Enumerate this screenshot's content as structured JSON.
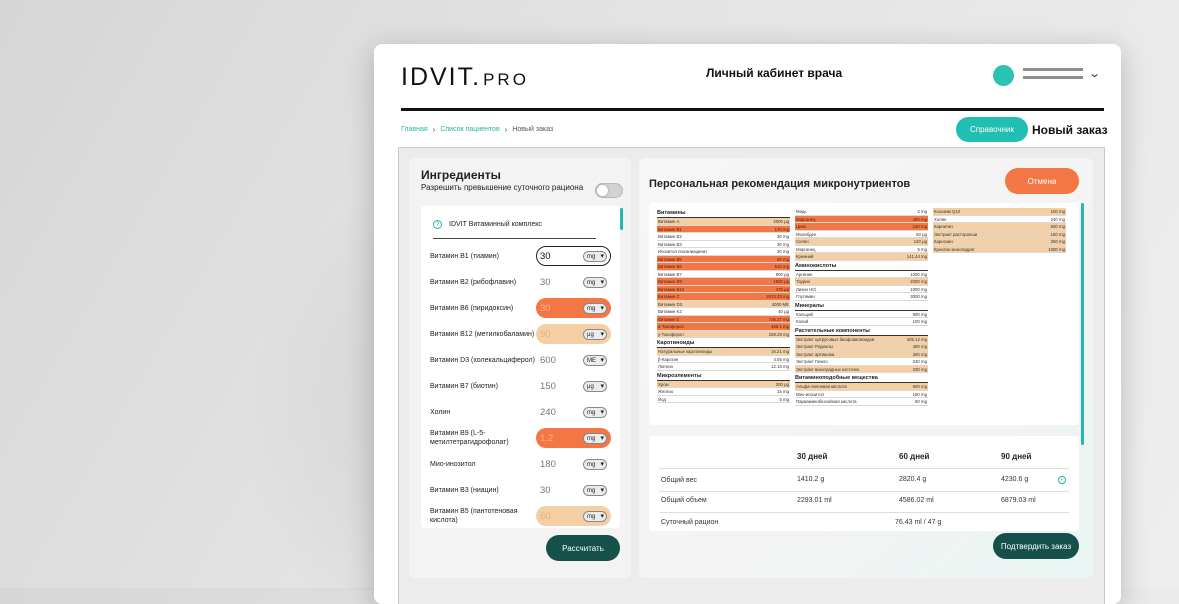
{
  "header": {
    "logo_main": "IDVIT.",
    "logo_pro": "PRO",
    "title": "Личный кабинет врача"
  },
  "breadcrumbs": [
    "Главная",
    "Список пациентов",
    "Новый заказ"
  ],
  "ref_button": "Справочник",
  "page_title": "Новый заказ",
  "ingredients": {
    "title": "Ингредиенты",
    "allow_label": "Разрешить превышение суточного рациона",
    "complex": "IDVIT Витаминный комплекс",
    "items": [
      {
        "name": "Витамин B1 (тиамин)",
        "value": "30",
        "unit": "mg"
      },
      {
        "name": "Витамин B2 (рибофлавин)",
        "value": "30",
        "unit": "mg"
      },
      {
        "name": "Витамин B6 (пиридоксин)",
        "value": "30",
        "unit": "mg"
      },
      {
        "name": "Витамин B12 (метилкобаламин)",
        "value": "90",
        "unit": "μg"
      },
      {
        "name": "Витамин D3 (холекальциферол)",
        "value": "600",
        "unit": "ME"
      },
      {
        "name": "Витамин B7 (биотин)",
        "value": "150",
        "unit": "μg"
      },
      {
        "name": "Холин",
        "value": "240",
        "unit": "mg"
      },
      {
        "name": "Витамин B9 (L-5-метилтетрагидрофолат)",
        "value": "1.2",
        "unit": "mg"
      },
      {
        "name": "Мио-инозитол",
        "value": "180",
        "unit": "mg"
      },
      {
        "name": "Витамин B3 (ниацин)",
        "value": "30",
        "unit": "mg"
      },
      {
        "name": "Витамин B5 (пантотеновая кислота)",
        "value": "60",
        "unit": "mg"
      }
    ],
    "calc_button": "Рассчитать"
  },
  "recommendation": {
    "title": "Персональная рекомендация микронутриентов",
    "cancel_button": "Отмена",
    "col1": [
      {
        "h": "Витамины"
      },
      {
        "n": "Витамин А",
        "v": "2000 μg",
        "c": "p"
      },
      {
        "n": "Витамин B1",
        "v": "170 mg",
        "c": "o"
      },
      {
        "n": "Витамин B2",
        "v": "30 mg"
      },
      {
        "n": "Витамин B3",
        "v": "30 mg"
      },
      {
        "n": "Инозитол гексаниацинат",
        "v": "20 mg"
      },
      {
        "n": "Витамин B5",
        "v": "60 mg",
        "c": "o"
      },
      {
        "n": "Витамин B6",
        "v": "510 mg",
        "c": "o"
      },
      {
        "n": "Витамин B7",
        "v": "900 μg"
      },
      {
        "n": "Витамин B9",
        "v": "1500 μg",
        "c": "o"
      },
      {
        "n": "Витамин B12",
        "v": "475 μg",
        "c": "o"
      },
      {
        "n": "Витамин C",
        "v": "2013.33 mg",
        "c": "o"
      },
      {
        "n": "Витамин D3",
        "v": "4000 ME",
        "c": "p"
      },
      {
        "n": "Витамин K2",
        "v": "40 μg"
      },
      {
        "n": "Витамин E",
        "v": "736.37 mg",
        "c": "o"
      },
      {
        "n": "a-Токоферол",
        "v": "468.1 mg",
        "c": "o"
      },
      {
        "n": "у-Токоферол",
        "v": "268.28 mg",
        "c": "p"
      },
      {
        "h": "Каротиноиды"
      },
      {
        "n": "Натуральные каротиноиды",
        "v": "16.21 mg",
        "c": "p"
      },
      {
        "n": "β-Каротин",
        "v": "4.05 mg"
      },
      {
        "n": "Лютеин",
        "v": "12.16 mg"
      },
      {
        "h": "Микроэлементы"
      },
      {
        "n": "Хром",
        "v": "200 μg",
        "c": "p"
      },
      {
        "n": "Железо",
        "v": "15 mg"
      },
      {
        "n": "Йод",
        "v": "5 mg"
      }
    ],
    "col2": [
      {
        "n": "Медь",
        "v": "2 mg"
      },
      {
        "n": "Марганец",
        "v": "400 mg",
        "c": "o"
      },
      {
        "n": "Цинк",
        "v": "120 mg",
        "c": "o"
      },
      {
        "n": "Молибден",
        "v": "50 μg"
      },
      {
        "n": "Селен",
        "v": "120 μg",
        "c": "p"
      },
      {
        "n": "Марганец",
        "v": "5 mg"
      },
      {
        "n": "Кремний",
        "v": "141.44 mg",
        "c": "p"
      },
      {
        "h": "Аминокислоты"
      },
      {
        "n": "Аргинин",
        "v": "1000 mg"
      },
      {
        "n": "Таурин",
        "v": "2000 mg",
        "c": "p"
      },
      {
        "n": "Лизин HCl",
        "v": "1000 mg"
      },
      {
        "n": "Глутамин",
        "v": "3000 mg"
      },
      {
        "h": "Минералы"
      },
      {
        "n": "Кальций",
        "v": "800 mg"
      },
      {
        "n": "Калий",
        "v": "100 mg"
      },
      {
        "h": "Растительные компоненты"
      },
      {
        "n": "Экстракт цитрусовых биофлавоноидов",
        "v": "405.12 mg",
        "c": "p"
      },
      {
        "n": "Экстракт Родиолы",
        "v": "400 mg",
        "c": "p"
      },
      {
        "n": "Экстракт артишока",
        "v": "300 mg",
        "c": "p"
      },
      {
        "n": "Экстракт Гинкго",
        "v": "240 mg"
      },
      {
        "n": "Экстракт виноградных косточек",
        "v": "200 mg",
        "c": "p"
      },
      {
        "h": "Витаминоподобные вещества"
      },
      {
        "n": "Альфа-липоевая кислота",
        "v": "600 mg",
        "c": "p"
      },
      {
        "n": "Мио-инозитол",
        "v": "180 mg"
      },
      {
        "n": "Парааминобензойная кислота",
        "v": "50 mg"
      }
    ],
    "col3": [
      {
        "n": "Коэнзим Q10",
        "v": "100 mg",
        "c": "p"
      },
      {
        "n": "Холин",
        "v": "240 mg"
      },
      {
        "n": "Карнитин",
        "v": "500 mg",
        "c": "p"
      },
      {
        "n": "Экстракт расторопши",
        "v": "150 mg",
        "c": "p"
      },
      {
        "n": "Карнозин",
        "v": "250 mg",
        "c": "p"
      },
      {
        "n": "Креатин моногидрат",
        "v": "1000 mg",
        "c": "p"
      }
    ]
  },
  "summary": {
    "headers": [
      "30 дней",
      "60 дней",
      "90 дней"
    ],
    "weight_label": "Общий вес",
    "weight": [
      "1410.2 g",
      "2820.4 g",
      "4230.6 g"
    ],
    "volume_label": "Общий объем",
    "volume": [
      "2293.01 ml",
      "4586.02 ml",
      "6879.03 ml"
    ],
    "daily_label": "Суточный рацион",
    "daily": "76.43 ml / 47 g"
  },
  "confirm_button": "Подтвердить заказ",
  "colors": {
    "teal": "#20bfb1",
    "orange": "#f37745",
    "peach": "#f5cfa4",
    "dark_green": "#16504a"
  }
}
